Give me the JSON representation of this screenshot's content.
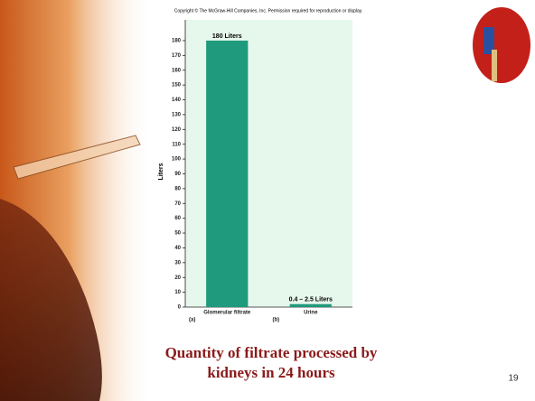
{
  "chart_data": {
    "type": "bar",
    "title": "Copyright © The McGraw-Hill Companies, Inc. Permission required for reproduction or display.",
    "y_label": "Liters",
    "categories": [
      "Glomerular filtrate",
      "Urine"
    ],
    "panel_labels": [
      "(a)",
      "(b)"
    ],
    "values": [
      180,
      2
    ],
    "annotations": [
      "180 Liters",
      "0.4 – 2.5 Liters"
    ],
    "color": "#1f9a7c",
    "ylim": [
      0,
      194
    ],
    "yticks": [
      0,
      10,
      20,
      30,
      40,
      50,
      60,
      70,
      80,
      90,
      100,
      110,
      120,
      130,
      140,
      150,
      160,
      170,
      180
    ]
  },
  "slide": {
    "caption_lines": [
      "Quantity of filtrate processed by",
      "kidneys in 24 hours"
    ],
    "page_number": "19"
  }
}
